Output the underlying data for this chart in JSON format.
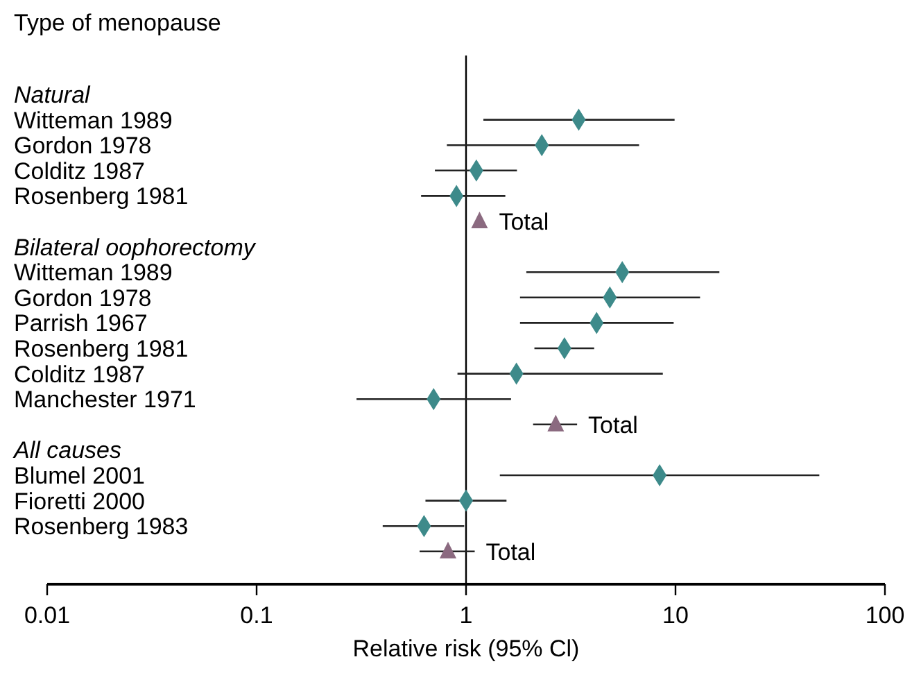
{
  "chart_data": {
    "type": "scatter",
    "orientation": "horizontal",
    "title": "Type of menopause",
    "xlabel": "Relative risk (95% Cl)",
    "categories": [
      "Natural",
      "Witteman 1989",
      "Gordon 1978",
      "Colditz 1987",
      "Rosenberg 1981",
      null,
      "Bilateral oophorectomy",
      "Witteman 1989",
      "Gordon 1978",
      "Parrish 1967",
      "Rosenberg 1981",
      "Colditz 1987",
      "Manchester 1971",
      null,
      "All causes",
      "Blumel 2001",
      "Fioretti 2000",
      "Rosenberg 1983",
      null
    ],
    "series": [
      {
        "color": "#3d8a8a",
        "marker": "diamond",
        "values": [
          null,
          3.45,
          2.3,
          1.12,
          0.9,
          null,
          null,
          5.57,
          4.86,
          4.2,
          2.95,
          1.74,
          0.7,
          null,
          null,
          8.4,
          1.0,
          0.63,
          null
        ],
        "errors": [
          null,
          [
            1.21,
            9.9
          ],
          [
            0.81,
            6.7
          ],
          [
            0.71,
            1.75
          ],
          [
            0.61,
            1.54
          ],
          null,
          null,
          [
            1.94,
            16.2
          ],
          [
            1.81,
            13.1
          ],
          [
            1.81,
            9.8
          ],
          [
            2.12,
            4.09
          ],
          [
            0.91,
            8.7
          ],
          [
            0.3,
            1.64
          ],
          null,
          null,
          [
            1.45,
            48.6
          ],
          [
            0.64,
            1.56
          ],
          [
            0.4,
            0.98
          ],
          null
        ]
      },
      {
        "name": "Total",
        "color": "#8b6a80",
        "marker": "triangle",
        "values": [
          null,
          null,
          null,
          null,
          null,
          1.16,
          null,
          null,
          null,
          null,
          null,
          null,
          null,
          2.68,
          null,
          null,
          null,
          null,
          0.82
        ],
        "errors": [
          null,
          null,
          null,
          null,
          null,
          null,
          null,
          null,
          null,
          null,
          null,
          null,
          null,
          [
            2.09,
            3.39
          ],
          null,
          null,
          null,
          null,
          [
            0.6,
            1.1
          ]
        ]
      }
    ],
    "xlim": [
      0.01,
      100
    ],
    "xticks": [
      0.01,
      0.1,
      1,
      10,
      100
    ],
    "log": "x",
    "grid": false,
    "ref_lines": [
      {
        "axis": "x",
        "value": 1,
        "color": "#000000"
      }
    ]
  }
}
